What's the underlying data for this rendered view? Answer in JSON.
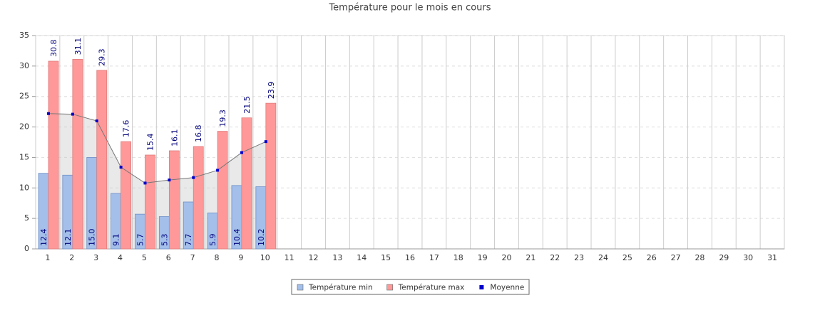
{
  "chart_data": {
    "type": "bar",
    "title": "Température pour le mois en cours",
    "categories": [
      "1",
      "2",
      "3",
      "4",
      "5",
      "6",
      "7",
      "8",
      "9",
      "10",
      "11",
      "12",
      "13",
      "14",
      "15",
      "16",
      "17",
      "18",
      "19",
      "20",
      "21",
      "22",
      "23",
      "24",
      "25",
      "26",
      "27",
      "28",
      "29",
      "30",
      "31"
    ],
    "series": [
      {
        "name": "Température min",
        "color": "#a3bfea",
        "type": "bar",
        "values": [
          12.4,
          12.1,
          15.0,
          9.1,
          5.7,
          5.3,
          7.7,
          5.9,
          10.4,
          10.2,
          null,
          null,
          null,
          null,
          null,
          null,
          null,
          null,
          null,
          null,
          null,
          null,
          null,
          null,
          null,
          null,
          null,
          null,
          null,
          null,
          null
        ],
        "value_labels": [
          "12.4",
          "12.1",
          "15.0",
          "9.1",
          "5.7",
          "5.3",
          "7.7",
          "5.9",
          "10.4",
          "10.2",
          null,
          null,
          null,
          null,
          null,
          null,
          null,
          null,
          null,
          null,
          null,
          null,
          null,
          null,
          null,
          null,
          null,
          null,
          null,
          null,
          null
        ]
      },
      {
        "name": "Température max",
        "color": "#ff9999",
        "type": "bar",
        "values": [
          30.8,
          31.1,
          29.3,
          17.6,
          15.4,
          16.1,
          16.8,
          19.3,
          21.5,
          23.9,
          null,
          null,
          null,
          null,
          null,
          null,
          null,
          null,
          null,
          null,
          null,
          null,
          null,
          null,
          null,
          null,
          null,
          null,
          null,
          null,
          null
        ]
      },
      {
        "name": "Moyenne",
        "color": "#0000cc",
        "type": "line",
        "values": [
          22.2,
          22.1,
          21.0,
          13.4,
          10.8,
          11.3,
          11.7,
          12.9,
          15.8,
          17.6,
          null,
          null,
          null,
          null,
          null,
          null,
          null,
          null,
          null,
          null,
          null,
          null,
          null,
          null,
          null,
          null,
          null,
          null,
          null,
          null,
          null
        ]
      }
    ],
    "ylim": [
      0,
      35
    ],
    "yticks": [
      0,
      5,
      10,
      15,
      20,
      25,
      30,
      35
    ],
    "grid": true,
    "legend": "bottom"
  }
}
